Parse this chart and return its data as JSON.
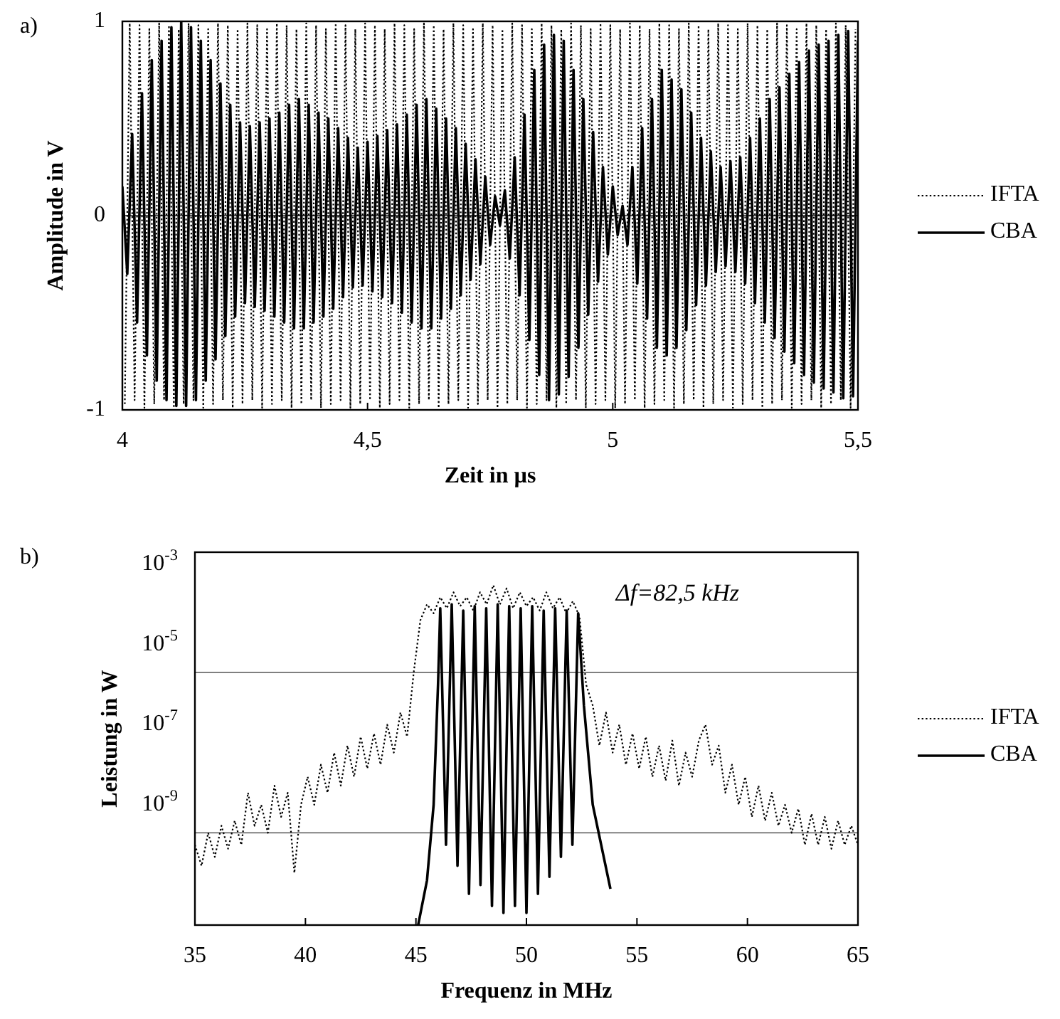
{
  "chart_data": [
    {
      "type": "line",
      "xlabel": "Zeit in µs",
      "ylabel": "Amplitude in V",
      "annotations": [
        "a)"
      ],
      "xlim": [
        4,
        5.5
      ],
      "ylim": [
        -1,
        1
      ],
      "xticks": [
        4,
        {
          "value": 4.5,
          "label": "4,5"
        },
        5,
        {
          "value": 5.5,
          "label": "5,5"
        }
      ],
      "yticks": [
        -1,
        0,
        1
      ],
      "grid": "y",
      "legend": "right",
      "series": [
        {
          "name": "IFTA",
          "color": "#000000",
          "line_style": "dotted",
          "x": [
            4.005,
            4.015,
            4.025,
            4.035,
            4.045,
            4.055,
            4.065,
            4.075,
            4.085,
            4.095,
            4.105,
            4.115,
            4.125,
            4.135,
            4.145,
            4.155,
            4.165,
            4.175,
            4.185,
            4.195,
            4.205,
            4.215,
            4.225,
            4.235,
            4.245,
            4.255,
            4.265,
            4.275,
            4.285,
            4.295,
            4.305,
            4.315,
            4.325,
            4.335,
            4.345,
            4.355,
            4.365,
            4.375,
            4.385,
            4.395,
            4.405,
            4.415,
            4.425,
            4.435,
            4.445,
            4.455,
            4.465,
            4.475,
            4.485,
            4.495,
            4.505,
            4.515,
            4.525,
            4.535,
            4.545,
            4.555,
            4.565,
            4.575,
            4.585,
            4.595,
            4.605,
            4.615,
            4.625,
            4.635,
            4.645,
            4.655,
            4.665,
            4.675,
            4.685,
            4.695,
            4.705,
            4.715,
            4.725,
            4.735,
            4.745,
            4.755,
            4.765,
            4.775,
            4.785,
            4.795,
            4.805,
            4.815,
            4.825,
            4.835,
            4.845,
            4.855,
            4.865,
            4.875,
            4.885,
            4.895,
            4.905,
            4.915,
            4.925,
            4.935,
            4.945,
            4.955,
            4.965,
            4.975,
            4.985,
            4.995,
            5.005,
            5.015,
            5.025,
            5.035,
            5.045,
            5.055,
            5.065,
            5.075,
            5.085,
            5.095,
            5.105,
            5.115,
            5.125,
            5.135,
            5.145,
            5.155,
            5.165,
            5.175,
            5.185,
            5.195,
            5.205,
            5.215,
            5.225,
            5.235,
            5.245,
            5.255,
            5.265,
            5.275,
            5.285,
            5.295,
            5.305,
            5.315,
            5.325,
            5.335,
            5.345,
            5.355,
            5.365,
            5.375,
            5.385,
            5.395,
            5.405,
            5.415,
            5.425,
            5.435,
            5.445,
            5.455,
            5.465,
            5.475,
            5.485,
            5.495
          ],
          "values": [
            -0.97,
            0.99,
            -0.95,
            0.98,
            -0.99,
            0.96,
            -0.97,
            0.99,
            -0.95,
            0.98,
            -0.99,
            0.96,
            -0.97,
            0.99,
            -0.95,
            0.98,
            -0.99,
            0.96,
            -0.97,
            0.99,
            -0.95,
            0.98,
            -0.99,
            0.96,
            -0.97,
            0.99,
            -0.95,
            0.98,
            -0.99,
            0.96,
            -0.97,
            0.99,
            -0.95,
            0.98,
            -0.99,
            0.96,
            -0.97,
            0.99,
            -0.95,
            0.98,
            -0.99,
            0.96,
            -0.97,
            0.99,
            -0.95,
            0.98,
            -0.99,
            0.96,
            -0.97,
            0.99,
            -0.95,
            0.98,
            -0.99,
            0.96,
            -0.97,
            0.99,
            -0.95,
            0.98,
            -0.99,
            0.96,
            -0.97,
            0.99,
            -0.95,
            0.98,
            -0.99,
            0.96,
            -0.97,
            0.99,
            -0.95,
            0.98,
            -0.99,
            0.96,
            -0.97,
            0.99,
            -0.95,
            0.98,
            -0.99,
            0.96,
            -0.97,
            0.99,
            -0.95,
            0.98,
            -0.99,
            0.96,
            -0.97,
            0.99,
            -0.95,
            0.98,
            -0.99,
            0.96,
            -0.97,
            0.99,
            -0.95,
            0.98,
            -0.99,
            0.96,
            -0.97,
            0.99,
            -0.95,
            0.98,
            -0.99,
            0.96,
            -0.97,
            0.99,
            -0.95,
            0.98,
            -0.99,
            0.96,
            -0.97,
            0.99,
            -0.95,
            0.98,
            -0.99,
            0.96,
            -0.97,
            0.99,
            -0.95,
            0.98,
            -0.99,
            0.96,
            -0.97,
            0.99,
            -0.95,
            0.98,
            -0.99,
            0.96,
            -0.97,
            0.99,
            -0.95,
            0.98,
            -0.99,
            0.96,
            -0.97,
            0.99,
            -0.95,
            0.98,
            -0.99,
            0.96,
            -0.97,
            0.99,
            -0.95,
            0.98,
            -0.99,
            0.96,
            -0.97,
            0.99,
            -0.95,
            0.98,
            -0.99,
            0.96
          ]
        },
        {
          "name": "CBA",
          "color": "#000000",
          "line_style": "solid",
          "x": [
            4.0,
            4.01,
            4.02,
            4.03,
            4.04,
            4.05,
            4.06,
            4.07,
            4.08,
            4.09,
            4.1,
            4.11,
            4.12,
            4.13,
            4.14,
            4.15,
            4.16,
            4.17,
            4.18,
            4.19,
            4.2,
            4.21,
            4.22,
            4.23,
            4.24,
            4.25,
            4.26,
            4.27,
            4.28,
            4.29,
            4.3,
            4.31,
            4.32,
            4.33,
            4.34,
            4.35,
            4.36,
            4.37,
            4.38,
            4.39,
            4.4,
            4.41,
            4.42,
            4.43,
            4.44,
            4.45,
            4.46,
            4.47,
            4.48,
            4.49,
            4.5,
            4.51,
            4.52,
            4.53,
            4.54,
            4.55,
            4.56,
            4.57,
            4.58,
            4.59,
            4.6,
            4.61,
            4.62,
            4.63,
            4.64,
            4.65,
            4.66,
            4.67,
            4.68,
            4.69,
            4.7,
            4.71,
            4.72,
            4.73,
            4.74,
            4.75,
            4.76,
            4.77,
            4.78,
            4.79,
            4.8,
            4.81,
            4.82,
            4.83,
            4.84,
            4.85,
            4.86,
            4.87,
            4.88,
            4.89,
            4.9,
            4.91,
            4.92,
            4.93,
            4.94,
            4.95,
            4.96,
            4.97,
            4.98,
            4.99,
            5.0,
            5.01,
            5.02,
            5.03,
            5.04,
            5.05,
            5.06,
            5.07,
            5.08,
            5.09,
            5.1,
            5.11,
            5.12,
            5.13,
            5.14,
            5.15,
            5.16,
            5.17,
            5.18,
            5.19,
            5.2,
            5.21,
            5.22,
            5.23,
            5.24,
            5.25,
            5.26,
            5.27,
            5.28,
            5.29,
            5.3,
            5.31,
            5.32,
            5.33,
            5.34,
            5.35,
            5.36,
            5.37,
            5.38,
            5.39,
            5.4,
            5.41,
            5.42,
            5.43,
            5.44,
            5.45,
            5.46,
            5.47,
            5.48,
            5.49,
            5.5
          ],
          "values": [
            0.15,
            -0.3,
            0.42,
            -0.55,
            0.63,
            -0.72,
            0.8,
            -0.85,
            0.9,
            -0.95,
            0.97,
            -0.98,
            1.0,
            -0.98,
            0.97,
            -0.95,
            0.9,
            -0.85,
            0.8,
            -0.74,
            0.68,
            -0.62,
            0.57,
            -0.52,
            0.48,
            -0.45,
            0.46,
            -0.47,
            0.48,
            -0.49,
            0.5,
            -0.52,
            0.53,
            -0.55,
            0.57,
            -0.58,
            0.6,
            -0.58,
            0.57,
            -0.55,
            0.53,
            -0.52,
            0.5,
            -0.48,
            0.45,
            -0.42,
            0.4,
            -0.37,
            0.35,
            -0.36,
            0.38,
            -0.39,
            0.41,
            -0.42,
            0.44,
            -0.45,
            0.47,
            -0.5,
            0.52,
            -0.55,
            0.57,
            -0.58,
            0.6,
            -0.58,
            0.55,
            -0.53,
            0.5,
            -0.48,
            0.45,
            -0.41,
            0.37,
            -0.33,
            0.29,
            -0.25,
            0.2,
            -0.15,
            0.1,
            -0.05,
            0.13,
            -0.22,
            0.3,
            -0.41,
            0.52,
            -0.64,
            0.75,
            -0.82,
            0.88,
            -0.95,
            0.93,
            -0.92,
            0.9,
            -0.83,
            0.75,
            -0.68,
            0.6,
            -0.51,
            0.43,
            -0.34,
            0.25,
            -0.2,
            0.15,
            -0.1,
            0.05,
            -0.15,
            0.25,
            -0.35,
            0.45,
            -0.53,
            0.6,
            -0.68,
            0.75,
            -0.72,
            0.7,
            -0.68,
            0.65,
            -0.59,
            0.53,
            -0.46,
            0.4,
            -0.36,
            0.33,
            -0.29,
            0.25,
            -0.26,
            0.28,
            -0.29,
            0.3,
            -0.35,
            0.4,
            -0.45,
            0.5,
            -0.55,
            0.6,
            -0.63,
            0.66,
            -0.7,
            0.73,
            -0.76,
            0.79,
            -0.82,
            0.85,
            -0.86,
            0.88,
            -0.89,
            0.9,
            -0.91,
            0.93,
            -0.94,
            0.95,
            -0.93,
            0.9
          ]
        }
      ]
    },
    {
      "type": "line",
      "xlabel": "Frequenz in MHz",
      "ylabel": "Leistung in W",
      "annotations": [
        "b)",
        "Δf=82,5 kHz"
      ],
      "xlim": [
        35,
        65
      ],
      "ylim": [
        1e-12,
        0.002
      ],
      "log": "y",
      "xticks": [
        35,
        40,
        45,
        50,
        55,
        60,
        65
      ],
      "yticks": [
        {
          "value": 0.001,
          "label": "10$^{-3}$"
        },
        {
          "value": 1e-05,
          "label": "10$^{-5}$"
        },
        {
          "value": 1e-07,
          "label": "10$^{-7}$"
        },
        {
          "value": 1e-09,
          "label": "10$^{-9}$"
        }
      ],
      "legend": "right",
      "ref_lines": [
        {
          "axis": "y",
          "value": 2e-06,
          "color": "#808080"
        },
        {
          "axis": "y",
          "value": 2e-10,
          "color": "#808080"
        }
      ],
      "series": [
        {
          "name": "IFTA",
          "color": "#000000",
          "line_style": "dotted",
          "x": [
            35.0,
            35.3,
            35.6,
            35.9,
            36.2,
            36.5,
            36.8,
            37.1,
            37.4,
            37.7,
            38.0,
            38.3,
            38.6,
            38.9,
            39.2,
            39.5,
            39.8,
            40.1,
            40.4,
            40.7,
            41.0,
            41.3,
            41.6,
            41.9,
            42.2,
            42.5,
            42.8,
            43.1,
            43.4,
            43.7,
            44.0,
            44.3,
            44.6,
            44.9,
            45.2,
            45.5,
            45.8,
            46.1,
            46.4,
            46.7,
            47.0,
            47.3,
            47.6,
            47.9,
            48.2,
            48.5,
            48.8,
            49.1,
            49.4,
            49.7,
            50.0,
            50.3,
            50.6,
            50.9,
            51.2,
            51.5,
            51.8,
            52.1,
            52.4,
            52.7,
            53.0,
            53.3,
            53.6,
            53.9,
            54.2,
            54.5,
            54.8,
            55.1,
            55.4,
            55.7,
            56.0,
            56.3,
            56.6,
            56.9,
            57.2,
            57.5,
            57.8,
            58.1,
            58.4,
            58.7,
            59.0,
            59.3,
            59.6,
            59.9,
            60.2,
            60.5,
            60.8,
            61.1,
            61.4,
            61.7,
            62.0,
            62.3,
            62.6,
            62.9,
            63.2,
            63.5,
            63.8,
            64.1,
            64.4,
            64.7,
            65.0
          ],
          "values": [
            1e-10,
            3e-11,
            2e-10,
            5e-11,
            3e-10,
            8e-11,
            4e-10,
            1e-10,
            2e-09,
            3e-10,
            1e-09,
            2e-10,
            3e-09,
            5e-10,
            2e-09,
            2e-11,
            1e-09,
            5e-09,
            1e-09,
            1e-08,
            2e-09,
            2e-08,
            3e-09,
            3e-08,
            5e-09,
            5e-08,
            8e-09,
            6e-08,
            1e-08,
            1e-07,
            2e-08,
            2e-07,
            5e-08,
            2e-06,
            4e-05,
            0.0001,
            6e-05,
            0.00015,
            8e-05,
            0.0002,
            9e-05,
            0.00015,
            7e-05,
            0.0002,
            0.0001,
            0.0003,
            0.0001,
            0.00025,
            8e-05,
            0.0002,
            9e-05,
            0.00015,
            7e-05,
            0.0002,
            8e-05,
            0.00015,
            6e-05,
            0.00012,
            5e-05,
            1e-06,
            3e-07,
            3e-08,
            2e-07,
            2e-08,
            1e-07,
            1e-08,
            6e-08,
            8e-09,
            5e-08,
            5e-09,
            3e-08,
            4e-09,
            4e-08,
            3e-09,
            2e-08,
            5e-09,
            4e-08,
            1e-07,
            1e-08,
            3e-08,
            2e-09,
            1e-08,
            1e-09,
            5e-09,
            5e-10,
            3e-09,
            4e-10,
            2e-09,
            3e-10,
            1e-09,
            2e-10,
            8e-10,
            1e-10,
            6e-10,
            1e-10,
            5e-10,
            8e-11,
            4e-10,
            1e-10,
            3e-10,
            1e-10
          ]
        },
        {
          "name": "CBA",
          "color": "#000000",
          "line_style": "solid",
          "x": [
            45.1,
            45.5,
            45.8,
            46.0,
            46.1,
            46.36,
            46.62,
            46.88,
            47.14,
            47.4,
            47.66,
            47.92,
            48.18,
            48.44,
            48.7,
            48.96,
            49.22,
            49.48,
            49.74,
            50.0,
            50.26,
            50.52,
            50.78,
            51.04,
            51.3,
            51.56,
            51.82,
            52.08,
            52.34,
            52.6,
            53.0,
            53.8
          ],
          "values": [
            1e-12,
            1.3e-11,
            1e-09,
            1e-06,
            8e-05,
            1e-10,
            0.0001,
            3e-11,
            7e-05,
            6e-12,
            9e-05,
            1e-11,
            8e-05,
            3e-12,
            0.0001,
            2e-12,
            9e-05,
            3e-12,
            8e-05,
            2e-12,
            9e-05,
            6e-12,
            7e-05,
            1.6e-11,
            8e-05,
            5e-11,
            7e-05,
            1e-10,
            6e-05,
            3e-07,
            1e-09,
            8e-12
          ]
        }
      ]
    }
  ]
}
